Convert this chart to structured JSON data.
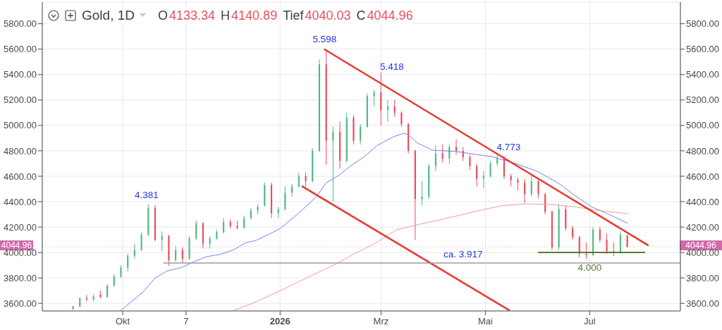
{
  "chart_data": {
    "type": "candlestick",
    "title": "Gold, 1D",
    "x": [
      "2025-09-02",
      "2025-09-06",
      "2025-09-10",
      "2025-09-14",
      "2025-09-18",
      "2025-09-22",
      "2025-09-26",
      "2025-09-30",
      "2025-10-04",
      "2025-10-08",
      "2025-10-12",
      "2025-10-16",
      "2025-10-20",
      "2025-10-24",
      "2025-10-28",
      "2025-11-01",
      "2025-11-05",
      "2025-11-09",
      "2025-11-13",
      "2025-11-17",
      "2025-11-21",
      "2025-11-25",
      "2025-11-29",
      "2025-12-03",
      "2025-12-07",
      "2025-12-11",
      "2025-12-15",
      "2025-12-19",
      "2025-12-23",
      "2025-12-27",
      "2025-12-31",
      "2026-01-04",
      "2026-01-08",
      "2026-01-12",
      "2026-01-16",
      "2026-01-20",
      "2026-01-24",
      "2026-01-28",
      "2026-02-01",
      "2026-02-05",
      "2026-02-09",
      "2026-02-13",
      "2026-02-17",
      "2026-02-21",
      "2026-02-25",
      "2026-03-01",
      "2026-03-05",
      "2026-03-09",
      "2026-03-13",
      "2026-03-17",
      "2026-03-21",
      "2026-03-25",
      "2026-03-29",
      "2026-04-02",
      "2026-04-06",
      "2026-04-10",
      "2026-04-14",
      "2026-04-18",
      "2026-04-22",
      "2026-04-26",
      "2026-04-30",
      "2026-05-04",
      "2026-05-08",
      "2026-05-12",
      "2026-05-16",
      "2026-05-20",
      "2026-05-24",
      "2026-05-28",
      "2026-06-01",
      "2026-06-05",
      "2026-06-09",
      "2026-06-13",
      "2026-06-17",
      "2026-06-21",
      "2026-06-25",
      "2026-06-29",
      "2026-07-03",
      "2026-07-07",
      "2026-07-11",
      "2026-07-15",
      "2026-07-19",
      "2026-07-23"
    ],
    "ohlc": [
      [
        3555,
        3580,
        3548,
        3575
      ],
      [
        3575,
        3650,
        3570,
        3640
      ],
      [
        3640,
        3665,
        3620,
        3630
      ],
      [
        3630,
        3670,
        3615,
        3655
      ],
      [
        3670,
        3700,
        3640,
        3650
      ],
      [
        3650,
        3750,
        3645,
        3740
      ],
      [
        3740,
        3830,
        3730,
        3810
      ],
      [
        3810,
        3900,
        3800,
        3880
      ],
      [
        3880,
        3990,
        3850,
        3975
      ],
      [
        3975,
        4070,
        3950,
        4020
      ],
      [
        4020,
        4160,
        4010,
        4140
      ],
      [
        4140,
        4381,
        4130,
        4350
      ],
      [
        4350,
        4375,
        4090,
        4100
      ],
      [
        4100,
        4165,
        4010,
        4130
      ],
      [
        4130,
        4140,
        3895,
        3940
      ],
      [
        3940,
        4050,
        3930,
        4020
      ],
      [
        4020,
        4040,
        3920,
        3950
      ],
      [
        3950,
        4130,
        3945,
        4110
      ],
      [
        4110,
        4250,
        4100,
        4230
      ],
      [
        4230,
        4240,
        4030,
        4070
      ],
      [
        4070,
        4130,
        4030,
        4110
      ],
      [
        4110,
        4180,
        4100,
        4160
      ],
      [
        4160,
        4270,
        4150,
        4240
      ],
      [
        4240,
        4260,
        4190,
        4210
      ],
      [
        4210,
        4250,
        4180,
        4195
      ],
      [
        4195,
        4290,
        4190,
        4270
      ],
      [
        4270,
        4350,
        4260,
        4330
      ],
      [
        4330,
        4380,
        4300,
        4360
      ],
      [
        4370,
        4550,
        4360,
        4530
      ],
      [
        4530,
        4550,
        4270,
        4310
      ],
      [
        4310,
        4360,
        4270,
        4340
      ],
      [
        4340,
        4520,
        4330,
        4470
      ],
      [
        4470,
        4540,
        4440,
        4520
      ],
      [
        4520,
        4630,
        4510,
        4600
      ],
      [
        4600,
        4630,
        4520,
        4560
      ],
      [
        4560,
        4820,
        4550,
        4800
      ],
      [
        4800,
        5520,
        4790,
        5480
      ],
      [
        5480,
        5598,
        4690,
        4880
      ],
      [
        4880,
        4990,
        4400,
        4950
      ],
      [
        4950,
        5030,
        4660,
        4720
      ],
      [
        4720,
        5100,
        4710,
        5060
      ],
      [
        5060,
        5080,
        4850,
        4880
      ],
      [
        4880,
        5010,
        4850,
        4990
      ],
      [
        4990,
        5250,
        4980,
        5230
      ],
      [
        5230,
        5280,
        5150,
        5260
      ],
      [
        5260,
        5418,
        5000,
        5120
      ],
      [
        5120,
        5200,
        5030,
        5150
      ],
      [
        5150,
        5200,
        5070,
        5100
      ],
      [
        5100,
        5110,
        4990,
        5010
      ],
      [
        5010,
        5020,
        4780,
        4800
      ],
      [
        4800,
        4810,
        4100,
        4420
      ],
      [
        4420,
        4560,
        4370,
        4440
      ],
      [
        4440,
        4700,
        4420,
        4680
      ],
      [
        4680,
        4840,
        4640,
        4780
      ],
      [
        4780,
        4850,
        4710,
        4740
      ],
      [
        4740,
        4850,
        4700,
        4830
      ],
      [
        4830,
        4890,
        4770,
        4800
      ],
      [
        4800,
        4830,
        4720,
        4750
      ],
      [
        4750,
        4770,
        4650,
        4680
      ],
      [
        4680,
        4700,
        4520,
        4580
      ],
      [
        4580,
        4640,
        4510,
        4600
      ],
      [
        4600,
        4720,
        4590,
        4700
      ],
      [
        4700,
        4773,
        4680,
        4740
      ],
      [
        4740,
        4760,
        4580,
        4600
      ],
      [
        4600,
        4620,
        4520,
        4570
      ],
      [
        4570,
        4590,
        4490,
        4550
      ],
      [
        4550,
        4580,
        4390,
        4460
      ],
      [
        4460,
        4600,
        4440,
        4560
      ],
      [
        4560,
        4570,
        4430,
        4460
      ],
      [
        4460,
        4470,
        4300,
        4320
      ],
      [
        4320,
        4330,
        4020,
        4040
      ],
      [
        4040,
        4380,
        4020,
        4340
      ],
      [
        4340,
        4370,
        4170,
        4190
      ],
      [
        4190,
        4210,
        4100,
        4120
      ],
      [
        4120,
        4130,
        3960,
        3990
      ],
      [
        3990,
        4080,
        3950,
        3980
      ],
      [
        3980,
        4200,
        3970,
        4180
      ],
      [
        4180,
        4200,
        4080,
        4100
      ],
      [
        4100,
        4150,
        3990,
        4010
      ],
      [
        4010,
        4080,
        3970,
        4000
      ],
      [
        4000,
        4170,
        3990,
        4140
      ],
      [
        4133.34,
        4140.89,
        4040.03,
        4044.96
      ]
    ],
    "colors": [
      "#53b987",
      "#53b987",
      "#eb4d5c",
      "#53b987",
      "#eb4d5c",
      "#53b987",
      "#53b987",
      "#53b987",
      "#53b987",
      "#53b987",
      "#53b987",
      "#53b987",
      "#eb4d5c",
      "#53b987",
      "#eb4d5c",
      "#53b987",
      "#eb4d5c",
      "#53b987",
      "#53b987",
      "#eb4d5c",
      "#53b987",
      "#53b987",
      "#53b987",
      "#eb4d5c",
      "#eb4d5c",
      "#53b987",
      "#53b987",
      "#53b987",
      "#53b987",
      "#eb4d5c",
      "#53b987",
      "#53b987",
      "#53b987",
      "#53b987",
      "#eb4d5c",
      "#53b987",
      "#53b987",
      "#eb4d5c",
      "#53b987",
      "#eb4d5c",
      "#53b987",
      "#eb4d5c",
      "#53b987",
      "#53b987",
      "#53b987",
      "#eb4d5c",
      "#53b987",
      "#eb4d5c",
      "#eb4d5c",
      "#eb4d5c",
      "#eb4d5c",
      "#53b987",
      "#53b987",
      "#53b987",
      "#eb4d5c",
      "#53b987",
      "#eb4d5c",
      "#eb4d5c",
      "#eb4d5c",
      "#eb4d5c",
      "#53b987",
      "#53b987",
      "#53b987",
      "#eb4d5c",
      "#eb4d5c",
      "#eb4d5c",
      "#eb4d5c",
      "#53b987",
      "#eb4d5c",
      "#eb4d5c",
      "#eb4d5c",
      "#53b987",
      "#eb4d5c",
      "#eb4d5c",
      "#eb4d5c",
      "#eb4d5c",
      "#53b987",
      "#eb4d5c",
      "#eb4d5c",
      "#eb4d5c",
      "#53b987",
      "#eb4d5c"
    ],
    "series": [
      {
        "type": "line",
        "color": "#7b7ef2",
        "x": [
          "2025-09-30",
          "2025-10-06",
          "2025-10-13",
          "2025-10-20",
          "2025-10-27",
          "2025-11-05",
          "2025-11-12",
          "2025-11-19",
          "2025-11-27",
          "2025-12-05",
          "2025-12-12",
          "2025-12-18",
          "2026-01-01",
          "2026-01-14",
          "2026-01-22",
          "2026-01-28",
          "2026-02-04",
          "2026-02-11",
          "2026-02-19",
          "2026-02-27",
          "2026-03-08",
          "2026-03-14",
          "2026-03-17",
          "2026-03-22",
          "2026-03-31",
          "2026-04-14",
          "2026-04-25",
          "2026-05-05",
          "2026-05-19",
          "2026-06-01",
          "2026-06-14",
          "2026-06-22",
          "2026-07-02",
          "2026-07-13",
          "2026-07-23"
        ],
        "values": [
          3545,
          3612,
          3690,
          3800,
          3855,
          3885,
          3930,
          3967,
          3985,
          4022,
          4078,
          4095,
          4187,
          4335,
          4437,
          4548,
          4604,
          4678,
          4752,
          4844,
          4909,
          4937,
          4928,
          4863,
          4805,
          4795,
          4772,
          4754,
          4699,
          4635,
          4534,
          4451,
          4360,
          4295,
          4231
        ]
      },
      {
        "type": "line",
        "color": "#f29b9b",
        "x": [
          "2025-12-05",
          "2025-12-16",
          "2026-01-02",
          "2026-01-18",
          "2026-02-04",
          "2026-02-11",
          "2026-02-25",
          "2026-03-10",
          "2026-03-24",
          "2026-04-07",
          "2026-04-28",
          "2026-05-11",
          "2026-05-25",
          "2026-06-08",
          "2026-06-22",
          "2026-07-05",
          "2026-07-23"
        ],
        "values": [
          3545,
          3600,
          3705,
          3810,
          3918,
          3974,
          4067,
          4178,
          4224,
          4265,
          4332,
          4369,
          4383,
          4378,
          4360,
          4332,
          4305
        ]
      },
      {
        "type": "line",
        "color": "#e8382c",
        "x": [
          "2026-01-27",
          "2026-08-04"
        ],
        "values": [
          5598,
          4058
        ]
      },
      {
        "type": "line",
        "color": "#e8382c",
        "x": [
          "2026-01-14",
          "2026-05-15"
        ],
        "values": [
          4520,
          3545
        ]
      },
      {
        "type": "line",
        "color": "#557a2c",
        "x": [
          "2026-06-01",
          "2026-08-02"
        ],
        "values": [
          4000,
          4000
        ]
      },
      {
        "type": "line",
        "color": "#9b9b9b",
        "x": [
          "2025-10-25",
          "2026-08-23"
        ],
        "values": [
          3917,
          3917
        ]
      }
    ],
    "xlim": [
      "2025-08-15",
      "2026-08-23"
    ],
    "xticks": [
      {
        "value": "2025-10-01",
        "label": "Okt"
      },
      {
        "value": "2025-11-07",
        "label": "7"
      },
      {
        "value": "2026-01-01",
        "label": "2026"
      },
      {
        "value": "2026-03-01",
        "label": "Mrz"
      },
      {
        "value": "2026-05-01",
        "label": "Mai"
      },
      {
        "value": "2026-07-01",
        "label": "Jul"
      }
    ],
    "ylim": [
      3540,
      5970
    ],
    "yticks": [
      {
        "value": 3600,
        "label": "3600.00"
      },
      {
        "value": 3800,
        "label": "3800.00"
      },
      {
        "value": 4000,
        "label": "4000.00"
      },
      {
        "value": 4200,
        "label": "4200.00"
      },
      {
        "value": 4400,
        "label": "4400.00"
      },
      {
        "value": 4600,
        "label": "4600.00"
      },
      {
        "value": 4800,
        "label": "4800.00"
      },
      {
        "value": 5000,
        "label": "5000.00"
      },
      {
        "value": 5200,
        "label": "5200.00"
      },
      {
        "value": 5400,
        "label": "5400.00"
      },
      {
        "value": 5600,
        "label": "5600.00"
      },
      {
        "value": 5800,
        "label": "5800.00"
      }
    ],
    "y2lim": [
      3540,
      5970
    ],
    "y2ticks": [
      {
        "value": 3600,
        "label": "3600.00"
      },
      {
        "value": 3800,
        "label": "3800.00"
      },
      {
        "value": 4000,
        "label": "4000.00"
      },
      {
        "value": 4200,
        "label": "4200.00"
      },
      {
        "value": 4400,
        "label": "4400.00"
      },
      {
        "value": 4600,
        "label": "4600.00"
      },
      {
        "value": 4800,
        "label": "4800.00"
      },
      {
        "value": 5000,
        "label": "5000.00"
      },
      {
        "value": 5200,
        "label": "5200.00"
      },
      {
        "value": 5400,
        "label": "5400.00"
      },
      {
        "value": 5600,
        "label": "5600.00"
      },
      {
        "value": 5800,
        "label": "5800.00"
      }
    ],
    "grid": true,
    "ref_lines": [
      {
        "axis": "y2",
        "value": 4044.96,
        "label": "4044.96",
        "color": "#d16aa9",
        "line_style": "dotted"
      }
    ],
    "annotations": [
      "O4133.34",
      "H4140.89",
      "Tief4040.03",
      "C4044.96",
      {
        "text": "4.381",
        "x": "2025-10-17",
        "y": 4381
      },
      {
        "text": "5.598",
        "x": "2026-01-27",
        "y": 5598
      },
      {
        "text": "5.418",
        "x": "2026-02-28",
        "y": 5418
      },
      {
        "text": "4.773",
        "x": "2026-05-08",
        "y": 4773
      },
      {
        "text": "ca. 3.917",
        "x": "2026-04-18",
        "y": 3917
      },
      {
        "text": "4.000",
        "x": "2026-07-01",
        "y": 4000
      },
      "4044.96"
    ]
  }
}
